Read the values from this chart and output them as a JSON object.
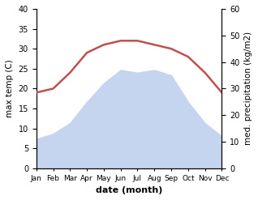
{
  "months": [
    "Jan",
    "Feb",
    "Mar",
    "Apr",
    "May",
    "Jun",
    "Jul",
    "Aug",
    "Sep",
    "Oct",
    "Nov",
    "Dec"
  ],
  "temp": [
    19,
    20,
    24,
    29,
    31,
    32,
    32,
    31,
    30,
    28,
    24,
    19
  ],
  "precip": [
    11,
    13,
    17,
    25,
    32,
    37,
    36,
    37,
    35,
    25,
    17,
    12
  ],
  "temp_color": "#c0504d",
  "precip_fill_color": "#c5d5f0",
  "ylim_temp": [
    0,
    40
  ],
  "ylim_precip": [
    0,
    60
  ],
  "xlabel": "date (month)",
  "ylabel_left": "max temp (C)",
  "ylabel_right": "med. precipitation (kg/m2)",
  "background_color": "#ffffff"
}
